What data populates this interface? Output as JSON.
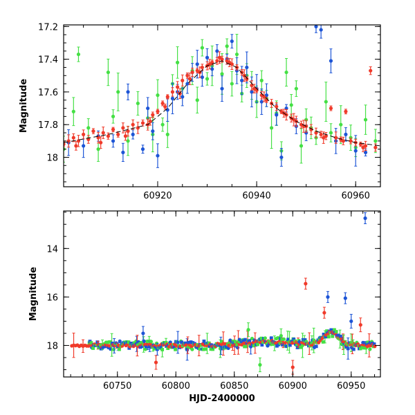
{
  "chart_data": [
    {
      "type": "scatter",
      "name": "zoomed-light-curve",
      "xlabel": "",
      "ylabel": "Magnitude",
      "xlim": [
        60901,
        60965
      ],
      "ylim": [
        18.18,
        17.19
      ],
      "y_inverted": true,
      "xticks": [
        60920,
        60940,
        60960
      ],
      "xtick_labels": [
        "60920",
        "60940",
        "60960"
      ],
      "yticks": [
        17.2,
        17.4,
        17.6,
        17.8,
        18.0
      ],
      "ytick_labels": [
        "17.2",
        "17.4",
        "17.6",
        "17.8",
        "18"
      ],
      "model_curve": {
        "color": "#000000",
        "x": [
          60901,
          60910,
          60918,
          60922,
          60926,
          60930,
          60933,
          60936,
          60940,
          60944,
          60948,
          60952,
          60956,
          60960,
          60965
        ],
        "y": [
          17.91,
          17.86,
          17.8,
          17.7,
          17.55,
          17.44,
          17.41,
          17.45,
          17.58,
          17.7,
          17.78,
          17.84,
          17.88,
          17.91,
          17.93
        ]
      },
      "series": [
        {
          "name": "red",
          "color": "#f03a2a",
          "points": [
            [
              60901,
              17.92
            ],
            [
              60902,
              17.9
            ],
            [
              60903,
              17.88
            ],
            [
              60904,
              17.9
            ],
            [
              60905,
              17.86
            ],
            [
              60906,
              17.89
            ],
            [
              60907,
              17.84
            ],
            [
              60908,
              17.88
            ],
            [
              60909,
              17.85
            ],
            [
              60910,
              17.87
            ],
            [
              60911,
              17.83
            ],
            [
              60912,
              17.86
            ],
            [
              60913,
              17.82
            ],
            [
              60914,
              17.84
            ],
            [
              60915,
              17.8
            ],
            [
              60916,
              17.82
            ],
            [
              60917,
              17.79
            ],
            [
              60918,
              17.8
            ],
            [
              60919,
              17.74
            ],
            [
              60920,
              17.72
            ],
            [
              60921,
              17.67
            ],
            [
              60922,
              17.63
            ],
            [
              60923,
              17.6
            ],
            [
              60924,
              17.57
            ],
            [
              60925,
              17.53
            ],
            [
              60926,
              17.5
            ],
            [
              60927,
              17.48
            ],
            [
              60928,
              17.47
            ],
            [
              60929,
              17.45
            ],
            [
              60930,
              17.44
            ],
            [
              60931,
              17.42
            ],
            [
              60932,
              17.41
            ],
            [
              60933,
              17.4
            ],
            [
              60934,
              17.41
            ],
            [
              60935,
              17.43
            ],
            [
              60936,
              17.45
            ],
            [
              60937,
              17.48
            ],
            [
              60938,
              17.52
            ],
            [
              60939,
              17.56
            ],
            [
              60940,
              17.59
            ],
            [
              60941,
              17.62
            ],
            [
              60942,
              17.65
            ],
            [
              60943,
              17.67
            ],
            [
              60944,
              17.69
            ],
            [
              60945,
              17.72
            ],
            [
              60946,
              17.74
            ],
            [
              60947,
              17.76
            ],
            [
              60948,
              17.78
            ],
            [
              60949,
              17.8
            ],
            [
              60950,
              17.81
            ],
            [
              60951,
              17.83
            ],
            [
              60952,
              17.85
            ],
            [
              60953,
              17.86
            ],
            [
              60954,
              17.87
            ],
            [
              60955,
              17.7
            ],
            [
              60956,
              17.88
            ],
            [
              60957,
              17.89
            ],
            [
              60958,
              17.72
            ],
            [
              60959,
              17.9
            ],
            [
              60960,
              17.91
            ],
            [
              60961,
              17.92
            ],
            [
              60962,
              17.93
            ],
            [
              60963,
              17.47
            ],
            [
              60964,
              17.94
            ],
            [
              60903.5,
              17.93
            ],
            [
              60908.5,
              17.91
            ],
            [
              60913.5,
              17.87
            ],
            [
              60918.5,
              17.78
            ],
            [
              60921.5,
              17.69
            ],
            [
              60926.5,
              17.52
            ],
            [
              60930.5,
              17.43
            ],
            [
              60934.5,
              17.42
            ],
            [
              60937.5,
              17.5
            ],
            [
              60941.5,
              17.63
            ],
            [
              60945.5,
              17.73
            ],
            [
              60949.5,
              17.81
            ],
            [
              60953.5,
              17.88
            ],
            [
              60957.5,
              17.9
            ],
            [
              60961.5,
              17.94
            ],
            [
              60924.5,
              17.61
            ],
            [
              60928.5,
              17.48
            ],
            [
              60932.5,
              17.39
            ],
            [
              60939.5,
              17.58
            ],
            [
              60947.5,
              17.77
            ]
          ]
        },
        {
          "name": "blue",
          "color": "#1d55d6",
          "points": [
            [
              60902,
              17.91
            ],
            [
              60905,
              17.93
            ],
            [
              60908,
              17.87
            ],
            [
              60911,
              17.9
            ],
            [
              60913,
              17.97
            ],
            [
              60915,
              17.86
            ],
            [
              60917,
              17.95
            ],
            [
              60919,
              17.84
            ],
            [
              60920,
              17.99
            ],
            [
              60922,
              17.71
            ],
            [
              60923,
              17.64
            ],
            [
              60924,
              17.6
            ],
            [
              60925,
              17.63
            ],
            [
              60926,
              17.55
            ],
            [
              60927,
              17.48
            ],
            [
              60928,
              17.43
            ],
            [
              60929,
              17.51
            ],
            [
              60930,
              17.39
            ],
            [
              60931,
              17.46
            ],
            [
              60932,
              17.35
            ],
            [
              60933,
              17.58
            ],
            [
              60934,
              17.4
            ],
            [
              60935,
              17.29
            ],
            [
              60936,
              17.47
            ],
            [
              60937,
              17.53
            ],
            [
              60938,
              17.45
            ],
            [
              60939,
              17.6
            ],
            [
              60940,
              17.58
            ],
            [
              60941,
              17.66
            ],
            [
              60942,
              17.62
            ],
            [
              60944,
              17.74
            ],
            [
              60946,
              17.7
            ],
            [
              60948,
              17.81
            ],
            [
              60950,
              17.85
            ],
            [
              60952,
              17.2
            ],
            [
              60953,
              17.22
            ],
            [
              60955,
              17.41
            ],
            [
              60956,
              17.9
            ],
            [
              60958,
              17.86
            ],
            [
              60960,
              17.96
            ],
            [
              60962,
              17.97
            ],
            [
              60914,
              17.6
            ],
            [
              60918,
              17.7
            ],
            [
              60945,
              18.0
            ]
          ]
        },
        {
          "name": "green",
          "color": "#44e044",
          "points": [
            [
              60901,
              17.95
            ],
            [
              60903,
              17.72
            ],
            [
              60904,
              17.37
            ],
            [
              60906,
              17.82
            ],
            [
              60908,
              17.95
            ],
            [
              60910,
              17.48
            ],
            [
              60911,
              17.75
            ],
            [
              60912,
              17.6
            ],
            [
              60914,
              17.9
            ],
            [
              60916,
              17.67
            ],
            [
              60918,
              17.76
            ],
            [
              60919,
              17.86
            ],
            [
              60920,
              17.62
            ],
            [
              60921,
              17.8
            ],
            [
              60922,
              17.86
            ],
            [
              60923,
              17.55
            ],
            [
              60924,
              17.42
            ],
            [
              60925,
              17.58
            ],
            [
              60927,
              17.47
            ],
            [
              60928,
              17.65
            ],
            [
              60929,
              17.33
            ],
            [
              60930,
              17.52
            ],
            [
              60931,
              17.44
            ],
            [
              60933,
              17.49
            ],
            [
              60934,
              17.32
            ],
            [
              60935,
              17.55
            ],
            [
              60936,
              17.37
            ],
            [
              60937,
              17.61
            ],
            [
              60938,
              17.5
            ],
            [
              60939,
              17.56
            ],
            [
              60940,
              17.66
            ],
            [
              60941,
              17.53
            ],
            [
              60942,
              17.64
            ],
            [
              60943,
              17.82
            ],
            [
              60944,
              17.73
            ],
            [
              60945,
              17.96
            ],
            [
              60946,
              17.48
            ],
            [
              60947,
              17.68
            ],
            [
              60948,
              17.58
            ],
            [
              60949,
              17.93
            ],
            [
              60950,
              17.77
            ],
            [
              60951,
              17.82
            ],
            [
              60952,
              17.88
            ],
            [
              60954,
              17.66
            ],
            [
              60955,
              17.85
            ],
            [
              60957,
              17.8
            ],
            [
              60959,
              17.88
            ],
            [
              60960,
              17.94
            ],
            [
              60962,
              17.77
            ],
            [
              60964,
              17.9
            ]
          ]
        }
      ]
    },
    {
      "type": "scatter",
      "name": "full-light-curve",
      "xlabel": "HJD-2400000",
      "ylabel": "Magnitude",
      "xlim": [
        60704,
        60975
      ],
      "ylim": [
        19.3,
        12.45
      ],
      "y_inverted": true,
      "xticks": [
        60750,
        60800,
        60850,
        60900,
        60950
      ],
      "xtick_labels": [
        "60750",
        "60800",
        "60850",
        "60900",
        "60950"
      ],
      "yticks": [
        14,
        16,
        18
      ],
      "ytick_labels": [
        "14",
        "16",
        "18"
      ],
      "outliers": [
        {
          "series": "red",
          "x": 60911,
          "y": 15.45
        },
        {
          "series": "blue",
          "x": 60930,
          "y": 16.0
        },
        {
          "series": "blue",
          "x": 60945,
          "y": 16.05
        },
        {
          "series": "blue",
          "x": 60962,
          "y": 12.75
        },
        {
          "series": "red",
          "x": 60927,
          "y": 16.65
        },
        {
          "series": "blue",
          "x": 60950,
          "y": 17.0
        },
        {
          "series": "red",
          "x": 60958,
          "y": 17.15
        },
        {
          "series": "green",
          "x": 60862,
          "y": 17.35
        },
        {
          "series": "green",
          "x": 60890,
          "y": 17.6
        },
        {
          "series": "blue",
          "x": 60772,
          "y": 17.5
        },
        {
          "series": "red",
          "x": 60783,
          "y": 18.7
        },
        {
          "series": "red",
          "x": 60900,
          "y": 18.9
        },
        {
          "series": "green",
          "x": 60872,
          "y": 18.8
        }
      ],
      "series_colors": {
        "red": "#f03a2a",
        "blue": "#1d55d6",
        "green": "#44e044"
      }
    }
  ]
}
